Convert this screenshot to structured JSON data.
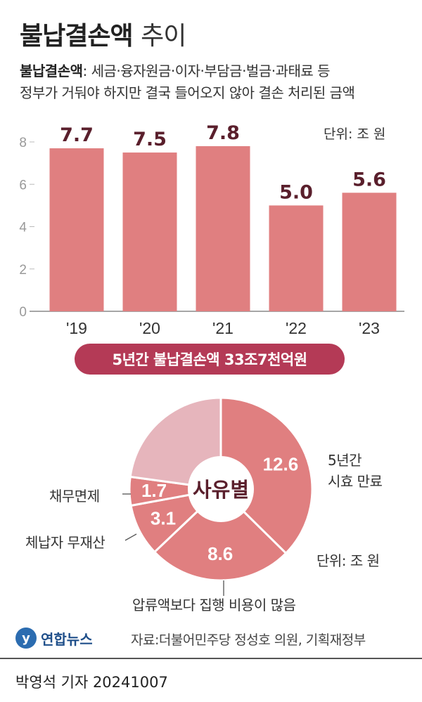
{
  "header": {
    "title_main": "불납결손액",
    "title_sub": "추이",
    "desc_bold": "불납결손액",
    "desc_line1_rest": ": 세금·융자원금·이자·부담금·벌금·과태료 등",
    "desc_line2": "정부가 거둬야 하지만 결국 들어오지 않아 결손 처리된 금액"
  },
  "chart_data": [
    {
      "type": "bar",
      "categories": [
        "'19",
        "'20",
        "'21",
        "'22",
        "'23"
      ],
      "values": [
        7.7,
        7.5,
        7.8,
        5.0,
        5.6
      ],
      "value_labels": [
        "7.7",
        "7.5",
        "7.8",
        "5.0",
        "5.6"
      ],
      "ylim": [
        0,
        8
      ],
      "yticks": [
        0,
        2,
        4,
        6,
        8
      ],
      "unit": "단위: 조 원",
      "grid": false,
      "color": "#e07f80"
    },
    {
      "type": "pie",
      "center_label": "사유별",
      "unit": "단위: 조 원",
      "slices": [
        {
          "label": "5년간\n시효 만료",
          "value": 12.6,
          "value_label": "12.6",
          "color": "#e07f80"
        },
        {
          "label": "압류액보다 집행 비용이 많음",
          "value": 8.6,
          "value_label": "8.6",
          "color": "#e07f80"
        },
        {
          "label": "체납자 무재산",
          "value": 3.1,
          "value_label": "3.1",
          "color": "#e07f80"
        },
        {
          "label": "채무면제",
          "value": 1.7,
          "value_label": "1.7",
          "color": "#e07f80"
        },
        {
          "label": "",
          "value": 7.7,
          "value_label": "",
          "color": "#e6b5bc"
        }
      ]
    }
  ],
  "summary_pill": "5년간 불납결손액 33조7천억원",
  "pie_labels": {
    "expire_line1": "5년간",
    "expire_line2": "시효 만료",
    "cost": "압류액보다 집행 비용이 많음",
    "noasset": "체납자 무재산",
    "waiver": "채무면제",
    "unit": "단위: 조 원"
  },
  "footer": {
    "logo_text": "연합뉴스",
    "source": "자료:더불어민주당 정성호 의원, 기획재정부",
    "byline": "박영석 기자  20241007"
  }
}
